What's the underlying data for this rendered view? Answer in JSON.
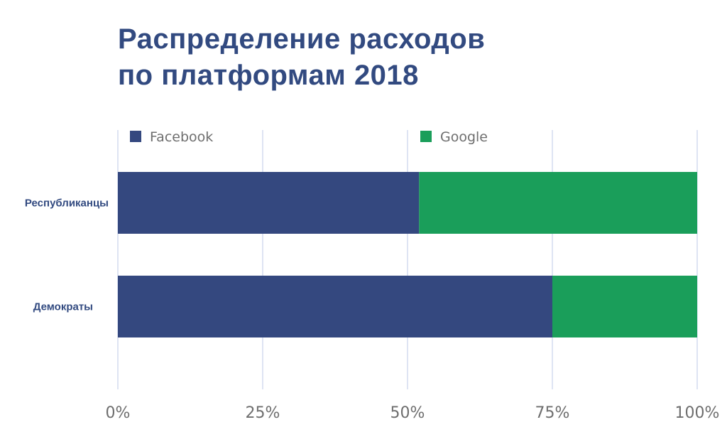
{
  "title_lines": [
    "Распределение расходов",
    "по платформам 2018"
  ],
  "colors": {
    "facebook": "#34487f",
    "google": "#1a9e5a",
    "grid": "#d3dcef",
    "title": "#324a80",
    "tick": "#6e6e6e"
  },
  "chart_data": {
    "type": "bar",
    "orientation": "horizontal",
    "stacked": true,
    "title": "Распределение расходов по платформам 2018",
    "categories": [
      "Республиканцы",
      "Демократы"
    ],
    "series": [
      {
        "name": "Facebook",
        "values": [
          52,
          75
        ]
      },
      {
        "name": "Google",
        "values": [
          48,
          25
        ]
      }
    ],
    "xlim": [
      0,
      100
    ],
    "x_ticks": [
      0,
      25,
      50,
      75,
      100
    ],
    "x_tick_labels": [
      "0%",
      "25%",
      "50%",
      "75%",
      "100%"
    ],
    "grid": "vertical",
    "legend_placement": "top"
  }
}
